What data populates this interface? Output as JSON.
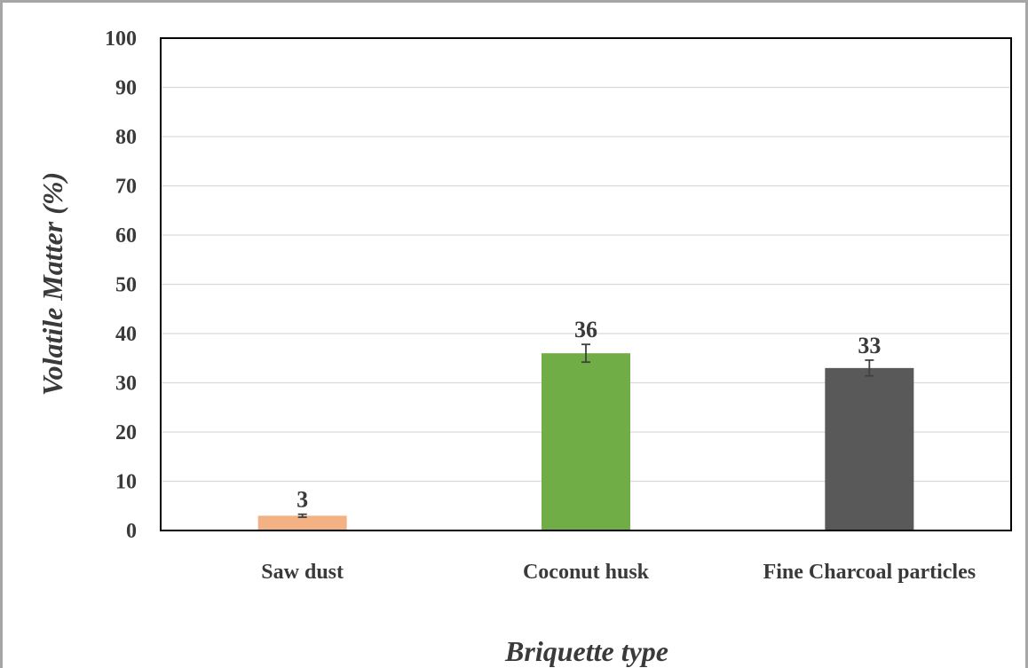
{
  "chart_data": {
    "type": "bar",
    "categories": [
      "Saw dust",
      "Coconut husk",
      "Fine Charcoal particles"
    ],
    "values": [
      3,
      36,
      33
    ],
    "errors": [
      0.3,
      1.8,
      1.6
    ],
    "data_labels": [
      "3",
      "36",
      "33"
    ],
    "colors": [
      "#f4b183",
      "#70ad47",
      "#595959"
    ],
    "ylabel": "Volatile Matter (%)",
    "xlabel": "Briquette type",
    "ylim": [
      0,
      100
    ],
    "yticks": [
      0,
      10,
      20,
      30,
      40,
      50,
      60,
      70,
      80,
      90,
      100
    ],
    "grid": true,
    "legend": "none"
  }
}
